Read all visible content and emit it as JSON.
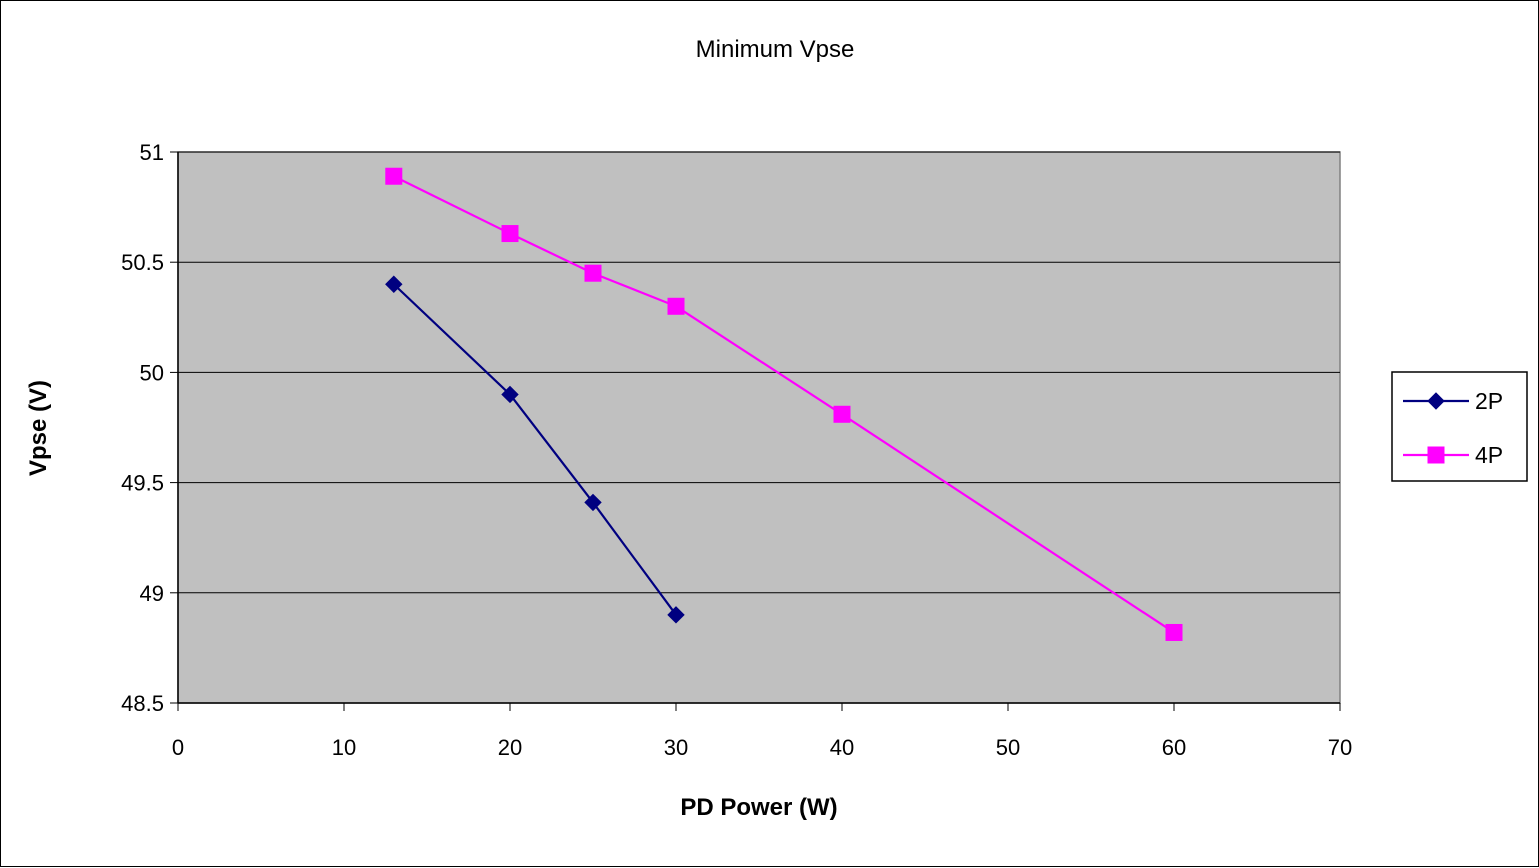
{
  "chart_data": {
    "type": "line",
    "title": "Minimum Vpse",
    "xlabel": "PD Power (W)",
    "ylabel": "Vpse (V)",
    "xlim": [
      0,
      70
    ],
    "ylim": [
      48.5,
      51
    ],
    "x_ticks": [
      "0",
      "10",
      "20",
      "30",
      "40",
      "50",
      "60",
      "70"
    ],
    "y_ticks": [
      "48.5",
      "49",
      "49.5",
      "50",
      "50.5",
      "51"
    ],
    "grid": "horizontal",
    "legend_position": "right",
    "plot_background": "#c0c0c0",
    "series": [
      {
        "name": "2P",
        "color": "#000080",
        "marker": "diamond",
        "x": [
          13,
          20,
          25,
          30
        ],
        "y": [
          50.4,
          49.9,
          49.41,
          48.9
        ]
      },
      {
        "name": "4P",
        "color": "#ff00ff",
        "marker": "square",
        "x": [
          13,
          20,
          25,
          30,
          40,
          60
        ],
        "y": [
          50.89,
          50.63,
          50.45,
          50.3,
          49.81,
          48.82
        ]
      }
    ]
  }
}
